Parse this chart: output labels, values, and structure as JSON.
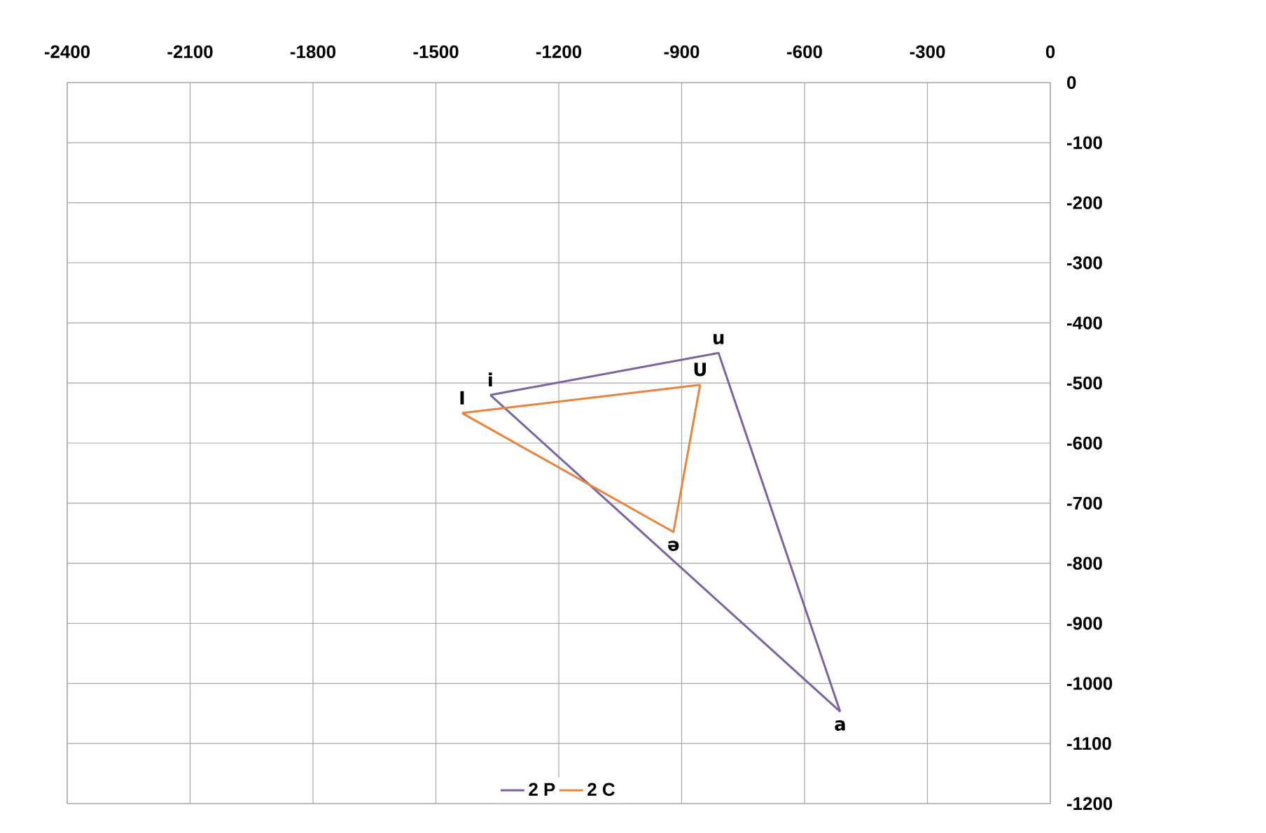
{
  "chart_data": {
    "type": "line",
    "series": [
      {
        "name": "2 P",
        "color": "#7a62a3",
        "x": [
          -1367,
          -810,
          -513
        ],
        "values": [
          -520,
          -450,
          -1047
        ]
      },
      {
        "color": "#7a62a3",
        "x": [
          -513,
          -1367
        ],
        "values": [
          -1047,
          -520
        ]
      },
      {
        "name": "2 C",
        "color": "#e8843c",
        "x": [
          -1436,
          -855
        ],
        "values": [
          -550,
          -503
        ]
      },
      {
        "color": "#e8843c",
        "x": [
          -855,
          -920,
          -1436
        ],
        "values": [
          -503,
          -748,
          -550
        ]
      }
    ],
    "xlim": [
      -2400,
      0
    ],
    "xticks": [
      -2400,
      -2100,
      -1800,
      -1500,
      -1200,
      -900,
      -600,
      -300,
      0
    ],
    "ylim": [
      -1200,
      0
    ],
    "yticks": [
      -1200,
      -1100,
      -1000,
      -900,
      -800,
      -700,
      -600,
      -500,
      -400,
      -300,
      -200,
      -100,
      0
    ],
    "grid": true,
    "legend": "bottom",
    "marker": "none",
    "line_style": "solid",
    "annotations": [
      {
        "text": "i",
        "x": -1367,
        "y": -520
      },
      {
        "text": "u",
        "x": -810,
        "y": -450
      },
      {
        "text": "a",
        "x": -513,
        "y": -1047
      },
      {
        "text": "I",
        "x": -1436,
        "y": -550
      },
      {
        "text": "U",
        "x": -855,
        "y": -503
      },
      {
        "text": "ə",
        "x": -920,
        "y": -748
      }
    ]
  }
}
